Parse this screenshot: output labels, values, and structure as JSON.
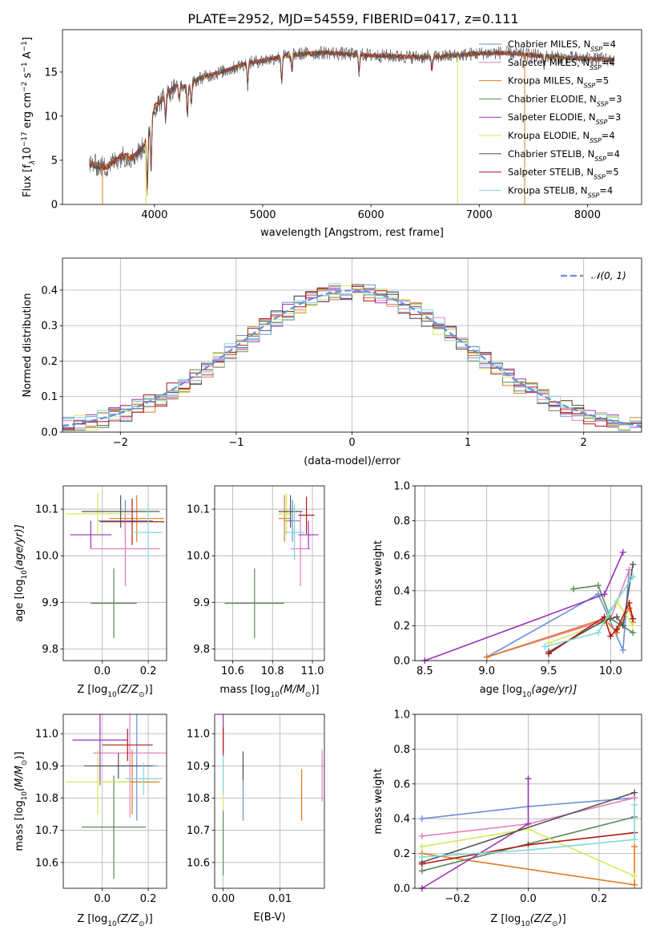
{
  "figure": {
    "title": "PLATE=2952, MJD=54559, FIBERID=0417, z=0.111"
  },
  "colors": {
    "Chabrier MILES": "#6b8fd6",
    "Salpeter MILES": "#e87fbf",
    "Kroupa MILES": "#e07b20",
    "Chabrier ELODIE": "#5a8a5a",
    "Salpeter ELODIE": "#9b35b5",
    "Kroupa ELODIE": "#d6e85c",
    "Chabrier STELIB": "#555555",
    "Salpeter STELIB": "#b01818",
    "Kroupa STELIB": "#7fd9dd"
  },
  "chart_data": [
    {
      "id": "spectrum",
      "type": "line",
      "title": "PLATE=2952, MJD=54559, FIBERID=0417, z=0.111",
      "xlabel": "wavelength [Angstrom, rest frame]",
      "ylabel_main": "Flux [f",
      "ylabel_sub": "λ",
      "ylabel_mid": "10",
      "ylabel_sup": "−17",
      "ylabel_rest": " erg cm",
      "ylabel_sup2": "−2",
      "ylabel_rest2": " s",
      "ylabel_sup3": "−1",
      "ylabel_rest3": " A",
      "ylabel_sup4": "−1",
      "ylabel_end": "]",
      "xlim": [
        3150,
        8500
      ],
      "ylim": [
        0,
        19.8
      ],
      "xticks": [
        4000,
        5000,
        6000,
        7000,
        8000
      ],
      "yticks": [
        0,
        5,
        10,
        15
      ],
      "legend_position": "top-right",
      "series": [
        {
          "name": "Chabrier MILES, N",
          "sub": "SSP",
          "tail": "=4"
        },
        {
          "name": "Salpeter MILES, N",
          "sub": "SSP",
          "tail": "=4"
        },
        {
          "name": "Kroupa MILES, N",
          "sub": "SSP",
          "tail": "=5"
        },
        {
          "name": "Chabrier ELODIE, N",
          "sub": "SSP",
          "tail": "=3"
        },
        {
          "name": "Salpeter ELODIE, N",
          "sub": "SSP",
          "tail": "=3"
        },
        {
          "name": "Kroupa ELODIE, N",
          "sub": "SSP",
          "tail": "=4"
        },
        {
          "name": "Chabrier STELIB, N",
          "sub": "SSP",
          "tail": "=4"
        },
        {
          "name": "Salpeter STELIB, N",
          "sub": "SSP",
          "tail": "=5"
        },
        {
          "name": "Kroupa STELIB, N",
          "sub": "SSP",
          "tail": "=4"
        }
      ],
      "continuum": [
        [
          3400,
          4.6
        ],
        [
          3550,
          4.2
        ],
        [
          3700,
          5.5
        ],
        [
          3800,
          5.3
        ],
        [
          3900,
          6.5
        ],
        [
          3950,
          8.5
        ],
        [
          4000,
          11.0
        ],
        [
          4100,
          12.3
        ],
        [
          4200,
          13.4
        ],
        [
          4300,
          13.3
        ],
        [
          4400,
          14.2
        ],
        [
          4500,
          14.6
        ],
        [
          4700,
          15.3
        ],
        [
          4850,
          16.0
        ],
        [
          5000,
          16.3
        ],
        [
          5200,
          16.8
        ],
        [
          5400,
          17.1
        ],
        [
          5600,
          17.2
        ],
        [
          5800,
          17.0
        ],
        [
          6000,
          16.9
        ],
        [
          6200,
          16.8
        ],
        [
          6400,
          16.7
        ],
        [
          6600,
          16.7
        ],
        [
          6800,
          16.9
        ],
        [
          7000,
          17.1
        ],
        [
          7200,
          17.2
        ],
        [
          7400,
          17.0
        ],
        [
          7600,
          16.8
        ],
        [
          7800,
          16.6
        ],
        [
          8000,
          16.5
        ],
        [
          8250,
          16.4
        ]
      ],
      "absorption_features": [
        [
          3934,
          6.5
        ],
        [
          3969,
          5.5
        ],
        [
          4102,
          2.5
        ],
        [
          4227,
          1.5
        ],
        [
          4304,
          3.5
        ],
        [
          4340,
          2.5
        ],
        [
          4861,
          2.5
        ],
        [
          5175,
          3.0
        ],
        [
          5270,
          1.8
        ],
        [
          5890,
          2.0
        ],
        [
          6563,
          1.5
        ],
        [
          7600,
          1.2
        ]
      ],
      "drops": [
        {
          "x": 3520,
          "ylo": 0,
          "series": 2
        },
        {
          "x": 3920,
          "ylo": 0,
          "series": 5
        },
        {
          "x": 6800,
          "ylo": 0,
          "series": 5
        },
        {
          "x": 7420,
          "ylo": 0,
          "series": 2
        }
      ]
    },
    {
      "id": "residuals",
      "type": "line",
      "xlabel": "(data-model)/error",
      "ylabel": "Normed distribution",
      "xlim": [
        -2.5,
        2.5
      ],
      "ylim": [
        0,
        0.49
      ],
      "xticks": [
        -2,
        -1,
        0,
        1,
        2
      ],
      "xtick_labels": [
        "−2",
        "−1",
        "0",
        "1",
        "2"
      ],
      "yticks": [
        0.0,
        0.1,
        0.2,
        0.3,
        0.4
      ],
      "ytick_labels": [
        "0.0",
        "0.1",
        "0.2",
        "0.3",
        "0.4"
      ],
      "grid": true,
      "legend_position": "top-right",
      "legend_label": "𝒩(0, 1)",
      "bin_width": 0.1,
      "normal_curve": {
        "mean": 0,
        "sd": 1
      }
    },
    {
      "id": "age_vs_Z",
      "type": "scatter",
      "xlabel": "Z [log",
      "xlabel_sub": "10",
      "xlabel_tail": "(Z/Z",
      "xlabel_sub2": "⊙",
      "xlabel_end": ")]",
      "ylabel": "age  [log",
      "ylabel_sub": "10",
      "ylabel_tail": "(age/yr)]",
      "xlim": [
        -0.17,
        0.28
      ],
      "ylim": [
        9.775,
        10.15
      ],
      "xticks": [
        0.0,
        0.2
      ],
      "xtick_labels": [
        "0.0",
        "0.2"
      ],
      "yticks": [
        9.8,
        9.9,
        10.0,
        10.1
      ],
      "ytick_labels": [
        "9.8",
        "9.9",
        "10.0",
        "10.1"
      ],
      "grid": true,
      "points": [
        {
          "s": 0,
          "x": 0.1,
          "xe": 0.12,
          "y": 10.075,
          "ye": 0.045
        },
        {
          "s": 1,
          "x": 0.1,
          "xe": 0.15,
          "y": 10.015,
          "ye": 0.08
        },
        {
          "s": 2,
          "x": 0.15,
          "xe": 0.12,
          "y": 10.08,
          "ye": 0.05
        },
        {
          "s": 3,
          "x": 0.05,
          "xe": 0.1,
          "y": 9.898,
          "ye": 0.075
        },
        {
          "s": 4,
          "x": -0.05,
          "xe": 0.09,
          "y": 10.045,
          "ye": 0.03
        },
        {
          "s": 5,
          "x": -0.02,
          "xe": 0.14,
          "y": 10.09,
          "ye": 0.045
        },
        {
          "s": 6,
          "x": 0.08,
          "xe": 0.17,
          "y": 10.095,
          "ye": 0.035
        },
        {
          "s": 7,
          "x": 0.13,
          "xe": 0.14,
          "y": 10.073,
          "ye": 0.05
        },
        {
          "s": 8,
          "x": 0.2,
          "xe": 0.06,
          "y": 10.05,
          "ye": 0.06
        }
      ]
    },
    {
      "id": "age_vs_mass",
      "type": "scatter",
      "xlabel": "mass [log",
      "xlabel_sub": "10",
      "xlabel_tail": "(M/M",
      "xlabel_sub2": "⊙",
      "xlabel_end": ")]",
      "xlim": [
        10.51,
        11.06
      ],
      "ylim": [
        9.775,
        10.15
      ],
      "xticks": [
        10.6,
        10.8,
        11.0
      ],
      "xtick_labels": [
        "10.6",
        "10.8",
        "11.0"
      ],
      "yticks": [
        9.8,
        9.9,
        10.0,
        10.1
      ],
      "ytick_labels": [
        "9.8",
        "9.9",
        "10.0",
        "10.1"
      ],
      "grid": true,
      "points": [
        {
          "s": 0,
          "x": 10.9,
          "xe": 0.04,
          "y": 10.075,
          "ye": 0.045
        },
        {
          "s": 1,
          "x": 10.94,
          "xe": 0.05,
          "y": 10.015,
          "ye": 0.08
        },
        {
          "s": 2,
          "x": 10.86,
          "xe": 0.03,
          "y": 10.08,
          "ye": 0.05
        },
        {
          "s": 3,
          "x": 10.71,
          "xe": 0.15,
          "y": 9.898,
          "ye": 0.075
        },
        {
          "s": 4,
          "x": 10.98,
          "xe": 0.05,
          "y": 10.045,
          "ye": 0.03
        },
        {
          "s": 5,
          "x": 10.87,
          "xe": 0.04,
          "y": 10.09,
          "ye": 0.045
        },
        {
          "s": 6,
          "x": 10.89,
          "xe": 0.06,
          "y": 10.095,
          "ye": 0.035
        },
        {
          "s": 7,
          "x": 10.97,
          "xe": 0.04,
          "y": 10.087,
          "ye": 0.04
        },
        {
          "s": 8,
          "x": 10.91,
          "xe": 0.05,
          "y": 10.05,
          "ye": 0.06
        }
      ]
    },
    {
      "id": "weight_vs_age",
      "type": "line",
      "xlabel": "age  [log",
      "xlabel_sub": "10",
      "xlabel_tail": "(age/yr)]",
      "ylabel": "mass weight",
      "xlim": [
        8.42,
        10.25
      ],
      "ylim": [
        0,
        1.0
      ],
      "xticks": [
        8.5,
        9.0,
        9.5,
        10.0
      ],
      "xtick_labels": [
        "8.5",
        "9.0",
        "9.5",
        "10.0"
      ],
      "yticks": [
        0.0,
        0.2,
        0.4,
        0.6,
        0.8,
        1.0
      ],
      "ytick_labels": [
        "0.0",
        "0.2",
        "0.4",
        "0.6",
        "0.8",
        "1.0"
      ],
      "grid": true,
      "series": [
        {
          "s": 0,
          "x": [
            9.0,
            9.9,
            10.1,
            10.15
          ],
          "y": [
            0.02,
            0.38,
            0.06,
            0.52
          ]
        },
        {
          "s": 1,
          "x": [
            9.0,
            10.0,
            10.15
          ],
          "y": [
            0.02,
            0.24,
            0.52
          ]
        },
        {
          "s": 2,
          "x": [
            9.0,
            9.95,
            10.05,
            10.15,
            10.18
          ],
          "y": [
            0.02,
            0.24,
            0.16,
            0.3,
            0.22
          ]
        },
        {
          "s": 3,
          "x": [
            9.7,
            9.9,
            10.0,
            10.18
          ],
          "y": [
            0.41,
            0.43,
            0.24,
            0.16
          ]
        },
        {
          "s": 4,
          "x": [
            8.5,
            9.95,
            10.1
          ],
          "y": [
            0.0,
            0.38,
            0.62
          ]
        },
        {
          "s": 5,
          "x": [
            9.5,
            9.95,
            10.05,
            10.18
          ],
          "y": [
            0.1,
            0.22,
            0.34,
            0.2
          ]
        },
        {
          "s": 6,
          "x": [
            9.5,
            9.95,
            10.05,
            10.1,
            10.18
          ],
          "y": [
            0.05,
            0.23,
            0.25,
            0.2,
            0.55
          ]
        },
        {
          "s": 7,
          "x": [
            9.5,
            9.95,
            10.0,
            10.05,
            10.15,
            10.18
          ],
          "y": [
            0.04,
            0.25,
            0.14,
            0.18,
            0.33,
            0.24
          ]
        },
        {
          "s": 8,
          "x": [
            9.47,
            9.9,
            10.0,
            10.18
          ],
          "y": [
            0.08,
            0.16,
            0.29,
            0.48
          ]
        }
      ]
    },
    {
      "id": "mass_vs_Z",
      "type": "scatter",
      "xlabel": "Z [log",
      "xlabel_sub": "10",
      "xlabel_tail": "(Z/Z",
      "xlabel_sub2": "⊙",
      "xlabel_end": ")]",
      "ylabel": "mass [log",
      "ylabel_sub": "10",
      "ylabel_tail": "(M/M",
      "ylabel_sub2": "⊙",
      "ylabel_end": ")]",
      "xlim": [
        -0.17,
        0.28
      ],
      "ylim": [
        10.52,
        11.06
      ],
      "xticks": [
        0.0,
        0.2
      ],
      "xtick_labels": [
        "0.0",
        "0.2"
      ],
      "yticks": [
        10.6,
        10.7,
        10.8,
        10.9,
        11.0
      ],
      "ytick_labels": [
        "10.6",
        "10.7",
        "10.8",
        "10.9",
        "11.0"
      ],
      "grid": true,
      "points": [
        {
          "s": 0,
          "x": 0.15,
          "xe": 0.09,
          "y": 10.9,
          "ye": 0.17
        },
        {
          "s": 1,
          "x": 0.12,
          "xe": 0.16,
          "y": 10.94,
          "ye": 0.2
        },
        {
          "s": 2,
          "x": 0.13,
          "xe": 0.12,
          "y": 10.85,
          "ye": 0.1
        },
        {
          "s": 3,
          "x": 0.05,
          "xe": 0.14,
          "y": 10.71,
          "ye": 0.16
        },
        {
          "s": 4,
          "x": -0.01,
          "xe": 0.12,
          "y": 10.98,
          "ye": 0.14
        },
        {
          "s": 5,
          "x": -0.02,
          "xe": 0.14,
          "y": 10.85,
          "ye": 0.1
        },
        {
          "s": 6,
          "x": 0.07,
          "xe": 0.15,
          "y": 10.9,
          "ye": 0.04
        },
        {
          "s": 7,
          "x": 0.11,
          "xe": 0.11,
          "y": 10.965,
          "ye": 0.05
        },
        {
          "s": 8,
          "x": 0.18,
          "xe": 0.08,
          "y": 10.86,
          "ye": 0.05
        }
      ]
    },
    {
      "id": "mass_vs_ebv",
      "type": "scatter",
      "xlabel": "E(B-V)",
      "xlim": [
        -0.0015,
        0.0178
      ],
      "ylim": [
        10.52,
        11.06
      ],
      "xticks": [
        0.0,
        0.01
      ],
      "xtick_labels": [
        "0.00",
        "0.01"
      ],
      "yticks": [
        10.6,
        10.7,
        10.8,
        10.9,
        11.0
      ],
      "ytick_labels": [
        "10.6",
        "10.7",
        "10.8",
        "10.9",
        "11.0"
      ],
      "grid": true,
      "points": [
        {
          "s": 0,
          "x": 0.0035,
          "xe": 0,
          "y": 10.82,
          "ye": 0.09
        },
        {
          "s": 1,
          "x": 0.0174,
          "xe": 0,
          "y": 10.87,
          "ye": 0.08
        },
        {
          "s": 2,
          "x": 0.0138,
          "xe": 0,
          "y": 10.81,
          "ye": 0.08
        },
        {
          "s": 3,
          "x": 0.0,
          "xe": 0,
          "y": 10.66,
          "ye": 0.1
        },
        {
          "s": 4,
          "x": 0.0,
          "xe": 0,
          "y": 11.03,
          "ye": 0.1
        },
        {
          "s": 5,
          "x": 0.0,
          "xe": 0,
          "y": 10.85,
          "ye": 0.08
        },
        {
          "s": 6,
          "x": 0.0035,
          "xe": 0,
          "y": 10.9,
          "ye": 0.045
        },
        {
          "s": 7,
          "x": 0.0,
          "xe": 0,
          "y": 10.98,
          "ye": 0.04
        },
        {
          "s": 8,
          "x": 0.0,
          "xe": 0,
          "y": 10.87,
          "ye": 0.06
        }
      ]
    },
    {
      "id": "weight_vs_Z",
      "type": "line",
      "xlabel": "Z [log",
      "xlabel_sub": "10",
      "xlabel_tail": "(Z/Z",
      "xlabel_sub2": "⊙",
      "xlabel_end": ")]",
      "ylabel": "mass weight",
      "xlim": [
        -0.32,
        0.32
      ],
      "ylim": [
        0,
        1.0
      ],
      "xticks": [
        -0.2,
        0.0,
        0.2
      ],
      "xtick_labels": [
        "−0.2",
        "0.0",
        "0.2"
      ],
      "yticks": [
        0.0,
        0.2,
        0.4,
        0.6,
        0.8,
        1.0
      ],
      "ytick_labels": [
        "0.0",
        "0.2",
        "0.4",
        "0.6",
        "0.8",
        "1.0"
      ],
      "grid": true,
      "series": [
        {
          "s": 0,
          "x": [
            -0.3,
            0.0,
            0.3
          ],
          "y": [
            0.4,
            0.47,
            0.52
          ]
        },
        {
          "s": 1,
          "x": [
            -0.3,
            0.0,
            0.3
          ],
          "y": [
            0.3,
            0.37,
            0.52
          ]
        },
        {
          "s": 2,
          "x": [
            -0.3,
            0.3,
            0.3
          ],
          "y": [
            0.2,
            0.02,
            0.24
          ]
        },
        {
          "s": 3,
          "x": [
            -0.3,
            0.3
          ],
          "y": [
            0.1,
            0.41
          ]
        },
        {
          "s": 4,
          "x": [
            -0.3,
            0.0,
            0.0
          ],
          "y": [
            0.0,
            0.37,
            0.63
          ]
        },
        {
          "s": 5,
          "x": [
            -0.3,
            0.0,
            0.3
          ],
          "y": [
            0.24,
            0.34,
            0.07
          ]
        },
        {
          "s": 6,
          "x": [
            -0.3,
            0.3
          ],
          "y": [
            0.15,
            0.55
          ]
        },
        {
          "s": 7,
          "x": [
            -0.3,
            0.0,
            0.3
          ],
          "y": [
            0.14,
            0.25,
            0.32
          ]
        },
        {
          "s": 8,
          "x": [
            -0.3,
            0.0,
            0.3,
            0.3
          ],
          "y": [
            0.18,
            0.22,
            0.28,
            0.48
          ]
        }
      ]
    }
  ]
}
